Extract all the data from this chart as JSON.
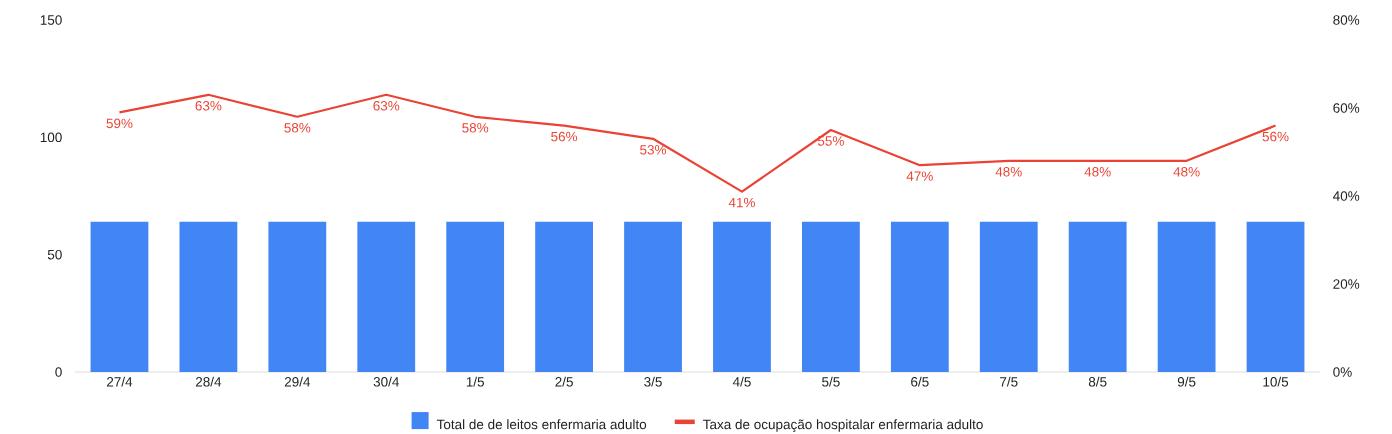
{
  "chart_data": {
    "type": "bar",
    "categories": [
      "27/4",
      "28/4",
      "29/4",
      "30/4",
      "1/5",
      "2/5",
      "3/5",
      "4/5",
      "5/5",
      "6/5",
      "7/5",
      "8/5",
      "9/5",
      "10/5"
    ],
    "series": [
      {
        "name": "Total de de leitos enfermaria adulto",
        "color": "#4285f4",
        "values": [
          64,
          64,
          64,
          64,
          64,
          64,
          64,
          64,
          64,
          64,
          64,
          64,
          64,
          64
        ]
      },
      {
        "name": "Taxa de ocupação hospitalar enfermaria adulto",
        "type": "line",
        "axis": "y2",
        "color": "#ea4335",
        "values": [
          59,
          63,
          58,
          63,
          58,
          56,
          53,
          41,
          55,
          47,
          48,
          48,
          48,
          56
        ],
        "value_labels": [
          "59%",
          "63%",
          "58%",
          "63%",
          "58%",
          "56%",
          "53%",
          "41%",
          "55%",
          "47%",
          "48%",
          "48%",
          "48%",
          "56%"
        ]
      }
    ],
    "ylim": [
      0,
      150
    ],
    "yticks": [
      0,
      50,
      100,
      150
    ],
    "y2lim": [
      0,
      80
    ],
    "y2ticks": [
      {
        "value": 0,
        "label": "0%"
      },
      {
        "value": 20,
        "label": "20%"
      },
      {
        "value": 40,
        "label": "40%"
      },
      {
        "value": 60,
        "label": "60%"
      },
      {
        "value": 80,
        "label": "80%"
      }
    ],
    "legend": "bottom"
  }
}
